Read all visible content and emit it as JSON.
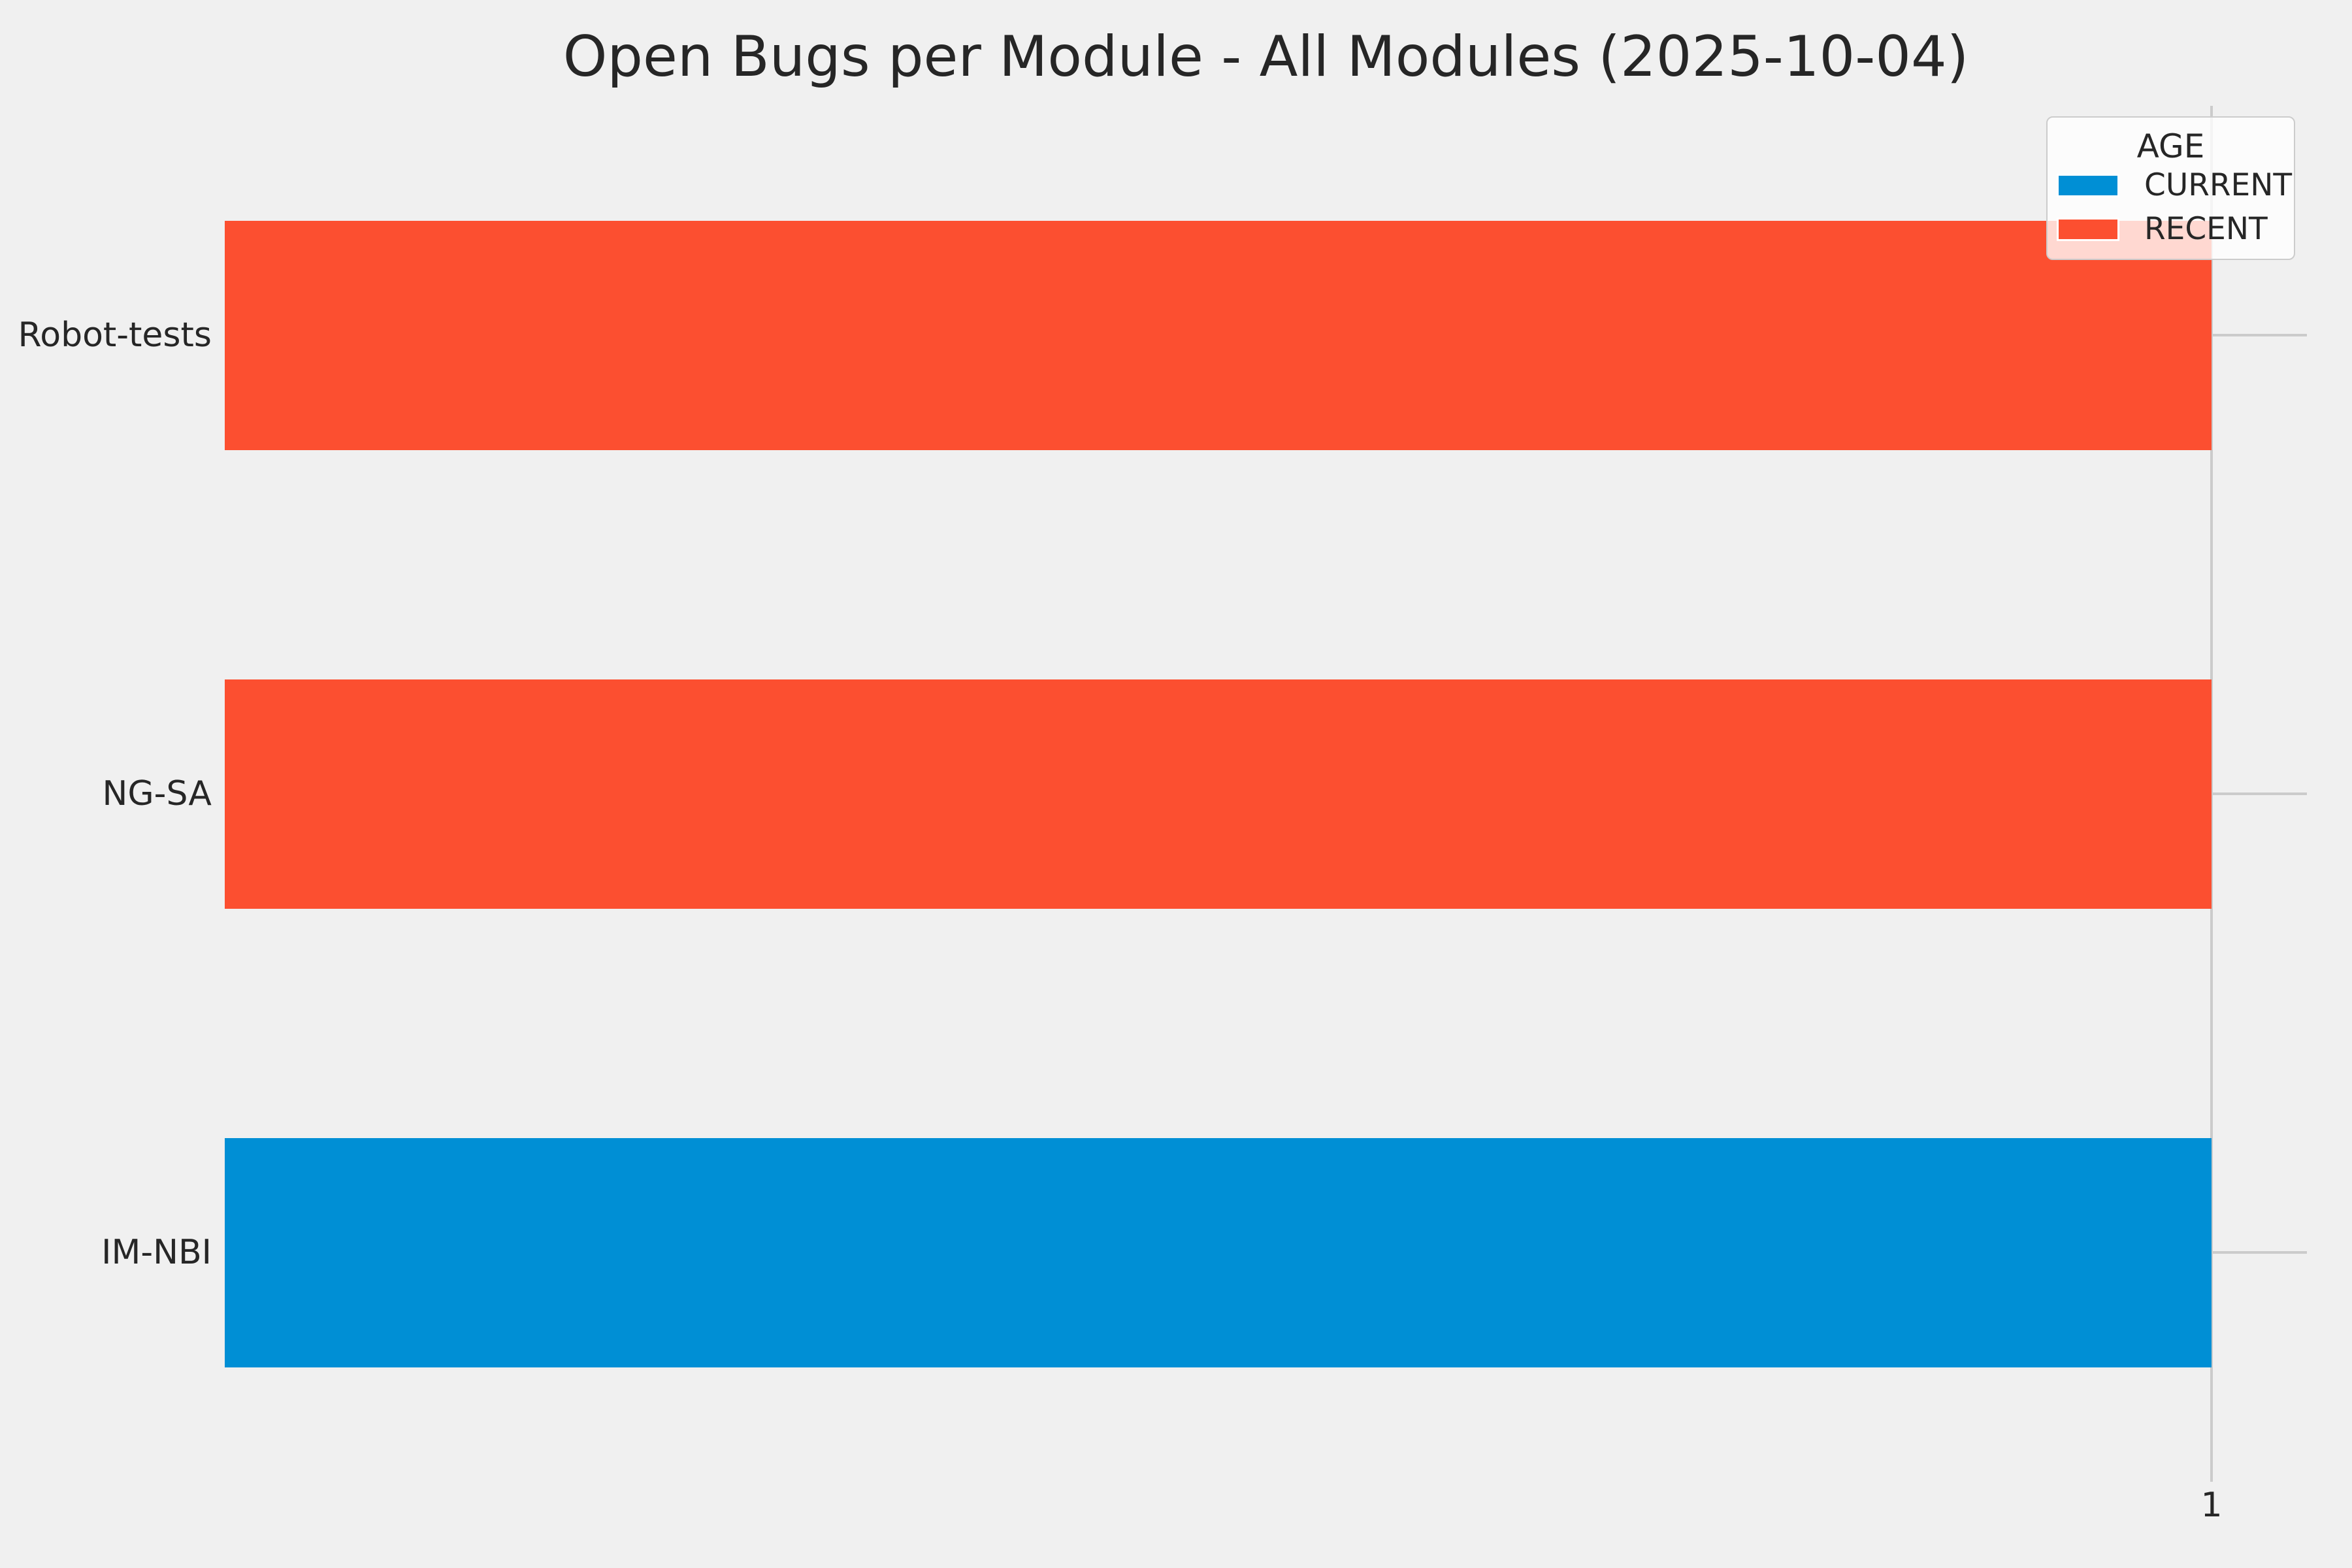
{
  "title": "Open Bugs per Module - All Modules (2025-10-04)",
  "legend": {
    "title": "AGE",
    "entries": [
      {
        "label": "CURRENT",
        "color": "#008fd5"
      },
      {
        "label": "RECENT",
        "color": "#fc4f30"
      }
    ]
  },
  "x_axis": {
    "tick_labels": [
      "1"
    ]
  },
  "colors": {
    "background": "#f0f0f0",
    "grid": "#cbcbcb",
    "text": "#262626",
    "current": "#008fd5",
    "recent": "#fc4f30"
  },
  "chart_data": {
    "type": "bar",
    "orientation": "horizontal",
    "title": "Open Bugs per Module - All Modules (2025-10-04)",
    "categories": [
      "Robot-tests",
      "NG-SA",
      "IM-NBI"
    ],
    "series_key": "AGE",
    "bars": [
      {
        "category": "Robot-tests",
        "value": 1,
        "age": "RECENT",
        "color": "#fc4f30"
      },
      {
        "category": "NG-SA",
        "value": 1,
        "age": "RECENT",
        "color": "#fc4f30"
      },
      {
        "category": "IM-NBI",
        "value": 1,
        "age": "CURRENT",
        "color": "#008fd5"
      }
    ],
    "xlabel": "",
    "ylabel": "",
    "xlim": [
      0,
      1.048
    ],
    "x_ticks": [
      1
    ],
    "grid": true,
    "legend_position": "upper right",
    "legend_title": "AGE",
    "legend_entries": [
      "CURRENT",
      "RECENT"
    ]
  }
}
